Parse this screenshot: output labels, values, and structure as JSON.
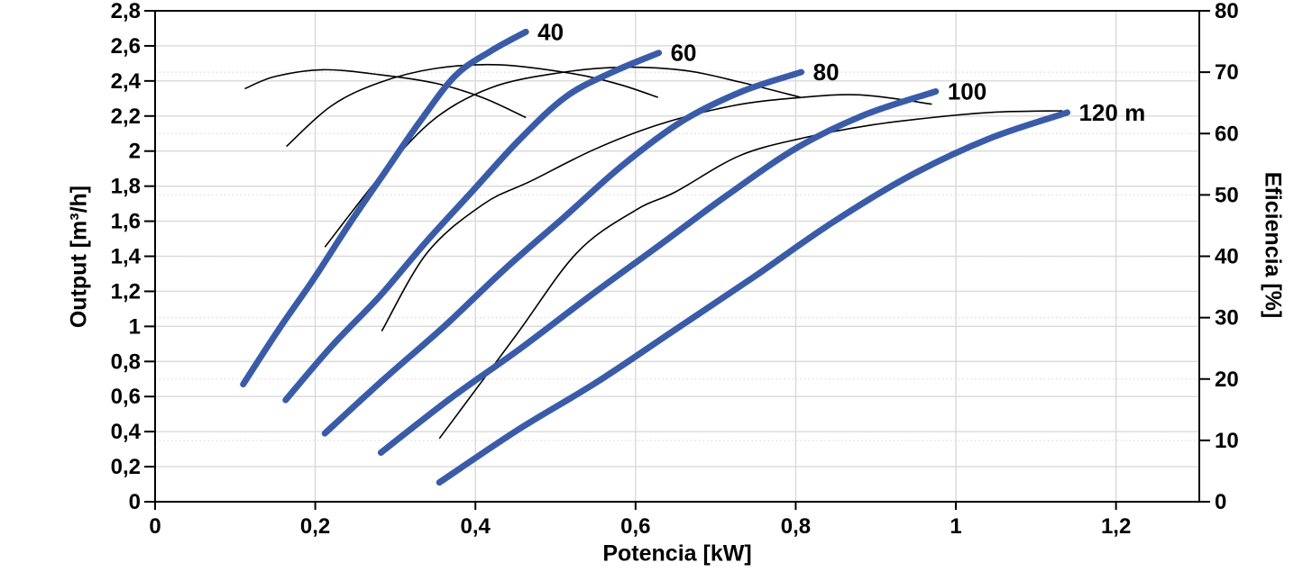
{
  "chart_data": {
    "type": "line",
    "title": "",
    "xlabel": "Potencia [kW]",
    "ylabel_left": "Output [m³/h]",
    "ylabel_right": "Eficiencia [%]",
    "legend_position": "line-end-labels",
    "x_axis": {
      "min": 0,
      "max": 1.304,
      "ticks": [
        0,
        0.2,
        0.4,
        0.6,
        0.8,
        1,
        1.2
      ],
      "tick_labels": [
        "0",
        "0,2",
        "0,4",
        "0,6",
        "0,8",
        "1",
        "1,2"
      ],
      "grid": "solid"
    },
    "y_axis_left": {
      "min": 0,
      "max": 2.8,
      "ticks": [
        0,
        0.2,
        0.4,
        0.6,
        0.8,
        1,
        1.2,
        1.4,
        1.6,
        1.8,
        2,
        2.2,
        2.4,
        2.6,
        2.8
      ],
      "tick_labels": [
        "0",
        "0,2",
        "0,4",
        "0,6",
        "0,8",
        "1",
        "1,2",
        "1,4",
        "1,6",
        "1,8",
        "2",
        "2,2",
        "2,4",
        "2,6",
        "2,8"
      ],
      "grid": "solid"
    },
    "y_axis_right": {
      "min": 0,
      "max": 80,
      "ticks": [
        0,
        10,
        20,
        30,
        40,
        50,
        60,
        70,
        80
      ],
      "tick_labels": [
        "0",
        "10",
        "20",
        "30",
        "40",
        "50",
        "60",
        "70",
        "80"
      ],
      "grid": "dotted"
    },
    "colors": {
      "pump_curve": "#3a5ca8",
      "efficiency_curve": "#000000",
      "grid_solid": "#d9d9d9",
      "grid_dotted": "#dcdcdc",
      "axis": "#000000",
      "text": "#000000"
    },
    "pump_curves": [
      {
        "label": "40",
        "head_m": 40,
        "points_kw_m3h": [
          [
            0.11,
            0.67
          ],
          [
            0.154,
            0.98
          ],
          [
            0.198,
            1.27
          ],
          [
            0.242,
            1.58
          ],
          [
            0.287,
            1.88
          ],
          [
            0.331,
            2.17
          ],
          [
            0.375,
            2.43
          ],
          [
            0.419,
            2.57
          ],
          [
            0.463,
            2.68
          ]
        ]
      },
      {
        "label": "60",
        "head_m": 60,
        "points_kw_m3h": [
          [
            0.163,
            0.58
          ],
          [
            0.221,
            0.89
          ],
          [
            0.28,
            1.17
          ],
          [
            0.338,
            1.48
          ],
          [
            0.396,
            1.77
          ],
          [
            0.454,
            2.06
          ],
          [
            0.513,
            2.31
          ],
          [
            0.571,
            2.45
          ],
          [
            0.629,
            2.56
          ]
        ]
      },
      {
        "label": "80",
        "head_m": 80,
        "points_kw_m3h": [
          [
            0.212,
            0.39
          ],
          [
            0.286,
            0.7
          ],
          [
            0.361,
            1.0
          ],
          [
            0.435,
            1.32
          ],
          [
            0.51,
            1.62
          ],
          [
            0.584,
            1.92
          ],
          [
            0.658,
            2.17
          ],
          [
            0.733,
            2.34
          ],
          [
            0.807,
            2.45
          ]
        ]
      },
      {
        "label": "100",
        "head_m": 100,
        "points_kw_m3h": [
          [
            0.282,
            0.28
          ],
          [
            0.369,
            0.59
          ],
          [
            0.455,
            0.87
          ],
          [
            0.542,
            1.17
          ],
          [
            0.629,
            1.46
          ],
          [
            0.715,
            1.75
          ],
          [
            0.802,
            2.02
          ],
          [
            0.888,
            2.21
          ],
          [
            0.975,
            2.34
          ]
        ]
      },
      {
        "label": "120 m",
        "head_m": 120,
        "points_kw_m3h": [
          [
            0.355,
            0.11
          ],
          [
            0.453,
            0.41
          ],
          [
            0.551,
            0.68
          ],
          [
            0.649,
            0.98
          ],
          [
            0.747,
            1.28
          ],
          [
            0.845,
            1.59
          ],
          [
            0.943,
            1.86
          ],
          [
            1.041,
            2.07
          ],
          [
            1.139,
            2.22
          ]
        ]
      }
    ],
    "efficiency_curves": [
      {
        "label": "40",
        "points_kw_pct": [
          [
            0.112,
            67.3
          ],
          [
            0.15,
            69.3
          ],
          [
            0.21,
            70.4
          ],
          [
            0.28,
            69.6
          ],
          [
            0.35,
            68.2
          ],
          [
            0.41,
            65.8
          ],
          [
            0.463,
            62.6
          ]
        ]
      },
      {
        "label": "60",
        "points_kw_pct": [
          [
            0.164,
            57.9
          ],
          [
            0.22,
            64.5
          ],
          [
            0.28,
            68.3
          ],
          [
            0.35,
            70.6
          ],
          [
            0.43,
            71.2
          ],
          [
            0.52,
            69.8
          ],
          [
            0.58,
            68.0
          ],
          [
            0.628,
            65.9
          ]
        ]
      },
      {
        "label": "80",
        "points_kw_pct": [
          [
            0.212,
            41.5
          ],
          [
            0.287,
            54.0
          ],
          [
            0.35,
            62.5
          ],
          [
            0.42,
            67.5
          ],
          [
            0.5,
            69.8
          ],
          [
            0.58,
            70.8
          ],
          [
            0.66,
            70.3
          ],
          [
            0.73,
            68.4
          ],
          [
            0.806,
            65.9
          ]
        ]
      },
      {
        "label": "100",
        "points_kw_pct": [
          [
            0.283,
            27.8
          ],
          [
            0.34,
            40.6
          ],
          [
            0.41,
            48.5
          ],
          [
            0.47,
            52.3
          ],
          [
            0.55,
            57.5
          ],
          [
            0.63,
            61.5
          ],
          [
            0.72,
            64.5
          ],
          [
            0.8,
            65.8
          ],
          [
            0.88,
            66.3
          ],
          [
            0.97,
            64.8
          ]
        ]
      },
      {
        "label": "120",
        "points_kw_pct": [
          [
            0.355,
            10.3
          ],
          [
            0.45,
            27.0
          ],
          [
            0.527,
            40.6
          ],
          [
            0.6,
            47.5
          ],
          [
            0.65,
            50.5
          ],
          [
            0.73,
            56.4
          ],
          [
            0.81,
            59.3
          ],
          [
            0.89,
            61.3
          ],
          [
            0.97,
            62.6
          ],
          [
            1.05,
            63.5
          ],
          [
            1.133,
            63.7
          ]
        ]
      }
    ]
  }
}
